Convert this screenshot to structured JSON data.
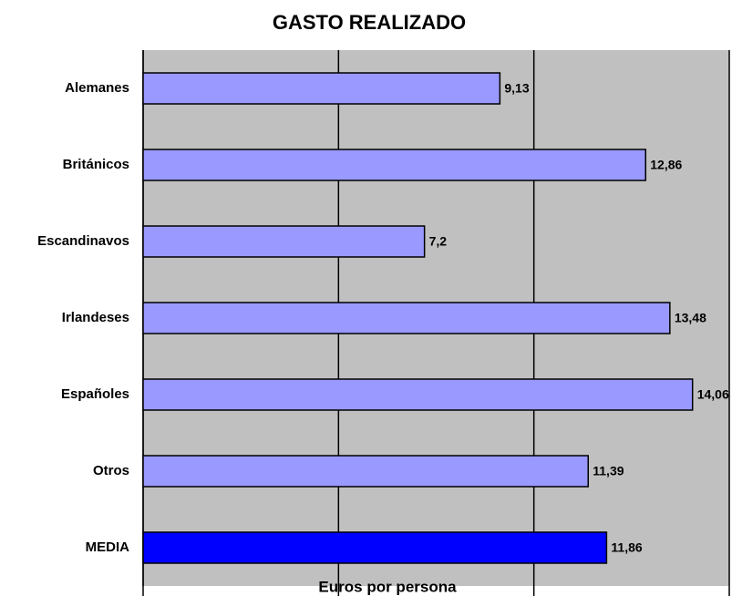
{
  "chart_data": {
    "type": "bar",
    "orientation": "horizontal",
    "title": "GASTO REALIZADO",
    "x_label": "Euros por persona",
    "categories": [
      "Alemanes",
      "Británicos",
      "Escandinavos",
      "Irlandeses",
      "Españoles",
      "Otros",
      "MEDIA"
    ],
    "values": [
      9.13,
      12.86,
      7.2,
      13.48,
      14.06,
      11.39,
      11.86
    ],
    "value_labels": [
      "9,13",
      "12,86",
      "7,2",
      "13,48",
      "14,06",
      "11,39",
      "11,86"
    ],
    "colors": [
      "#9999ff",
      "#9999ff",
      "#9999ff",
      "#9999ff",
      "#9999ff",
      "#9999ff",
      "#0000ff"
    ],
    "xlim": [
      0,
      15
    ],
    "xticks": [
      0,
      5,
      10,
      15
    ],
    "grid": true
  }
}
